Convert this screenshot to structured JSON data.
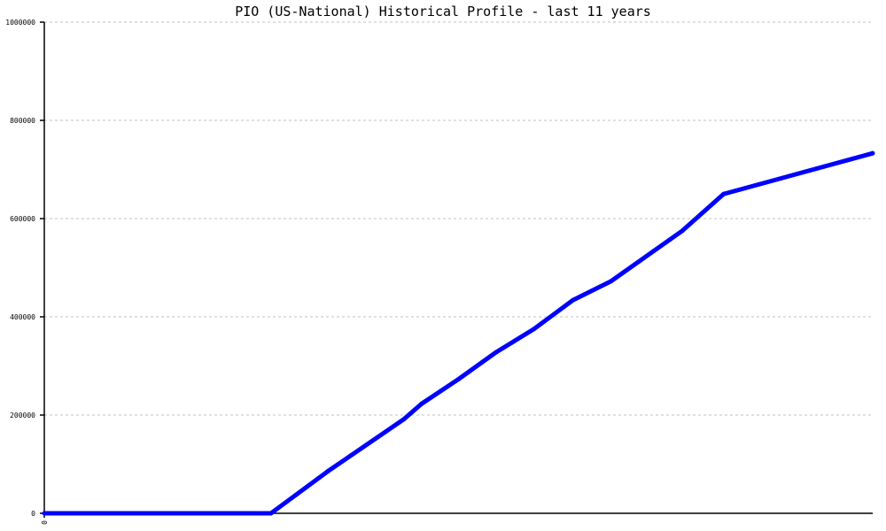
{
  "chart_data": {
    "type": "line",
    "title": "PIO (US-National) Historical Profile - last 11 years",
    "xlabel": "",
    "ylabel": "",
    "ylim": [
      0,
      1000000
    ],
    "xlim": [
      0,
      11
    ],
    "y_ticks": [
      "0",
      "200000",
      "400000",
      "600000",
      "800000",
      "1000000"
    ],
    "y_tick_values": [
      0,
      200000,
      400000,
      600000,
      800000,
      1000000
    ],
    "x_ticks": [
      "0"
    ],
    "x_tick_values": [
      0
    ],
    "grid": "horizontal dashed",
    "legend": "none",
    "series": [
      {
        "color": "#0000ff",
        "x": [
          0,
          3.01,
          3.76,
          4.77,
          5.01,
          5.49,
          6.0,
          6.5,
          7.02,
          7.52,
          8.47,
          9.02,
          11
        ],
        "y": [
          0,
          0,
          85000,
          191000,
          223000,
          272000,
          328000,
          375000,
          434000,
          472000,
          575000,
          650000,
          733000
        ]
      }
    ]
  }
}
